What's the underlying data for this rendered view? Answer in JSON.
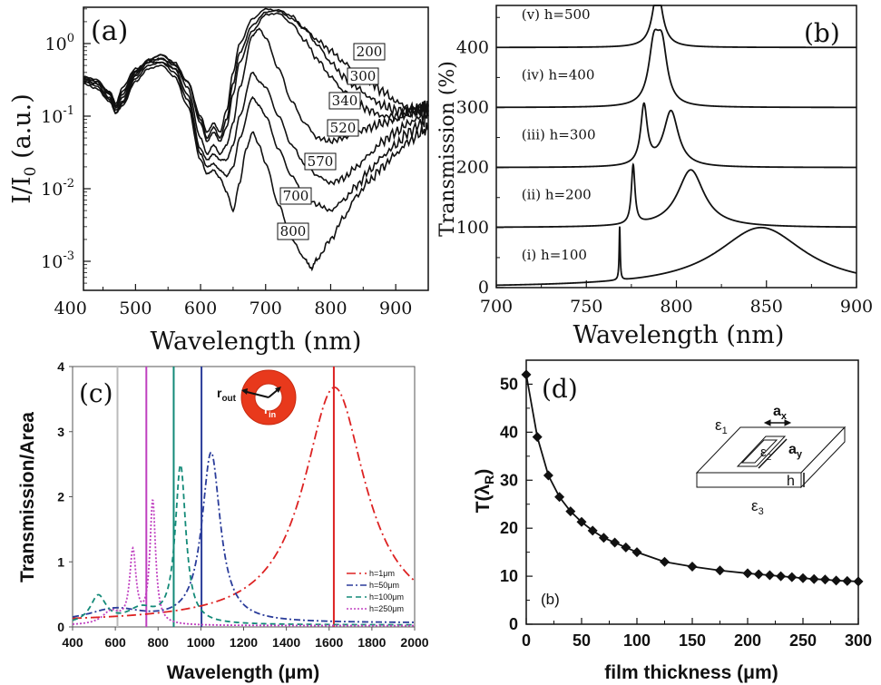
{
  "chart_data": [
    {
      "panel": "a",
      "type": "line",
      "panel_label": "(a)",
      "xlabel": "Wavelength  (nm)",
      "ylabel": "I/I",
      "ylabel_sub": "0",
      "ylabel_unit": " (a.u.)",
      "xlim": [
        420,
        950
      ],
      "ylim_log10": [
        -3.4,
        0.5
      ],
      "yscale": "log",
      "x_ticks": [
        400,
        500,
        600,
        700,
        800,
        900
      ],
      "y_ticks": [
        {
          "exp": 0,
          "base": "10",
          "sup": "0"
        },
        {
          "exp": -1,
          "base": "10",
          "sup": "-1"
        },
        {
          "exp": -2,
          "base": "10",
          "sup": "-2"
        },
        {
          "exp": -3,
          "base": "10",
          "sup": "-3"
        }
      ],
      "series": [
        {
          "name": "200",
          "label": "200",
          "x": [
            420,
            440,
            460,
            470,
            480,
            500,
            520,
            540,
            560,
            580,
            600,
            610,
            620,
            630,
            640,
            650,
            660,
            680,
            700,
            720,
            740,
            760,
            780,
            800,
            820,
            840,
            860,
            880,
            900,
            920,
            940,
            950
          ],
          "y": [
            0.3,
            0.28,
            0.22,
            0.15,
            0.25,
            0.45,
            0.55,
            0.55,
            0.45,
            0.3,
            0.1,
            0.06,
            0.08,
            0.06,
            0.12,
            0.4,
            1.0,
            2.2,
            3.0,
            2.8,
            2.2,
            1.6,
            1.1,
            0.8,
            0.55,
            0.4,
            0.3,
            0.22,
            0.16,
            0.13,
            0.12,
            0.12
          ]
        },
        {
          "name": "300",
          "label": "300",
          "x": [
            420,
            440,
            460,
            470,
            480,
            500,
            520,
            540,
            560,
            580,
            600,
            610,
            620,
            630,
            640,
            650,
            660,
            680,
            700,
            720,
            740,
            760,
            780,
            800,
            820,
            840,
            860,
            880,
            900,
            920,
            940,
            950
          ],
          "y": [
            0.33,
            0.3,
            0.2,
            0.14,
            0.22,
            0.42,
            0.58,
            0.62,
            0.5,
            0.3,
            0.09,
            0.05,
            0.07,
            0.05,
            0.09,
            0.28,
            0.75,
            1.8,
            2.7,
            2.9,
            2.4,
            1.6,
            0.95,
            0.55,
            0.35,
            0.25,
            0.18,
            0.14,
            0.12,
            0.12,
            0.13,
            0.14
          ]
        },
        {
          "name": "340",
          "label": "340",
          "x": [
            420,
            440,
            460,
            470,
            480,
            500,
            520,
            540,
            560,
            580,
            600,
            610,
            620,
            630,
            640,
            650,
            660,
            680,
            700,
            720,
            740,
            760,
            780,
            800,
            820,
            840,
            860,
            880,
            900,
            920,
            940,
            950
          ],
          "y": [
            0.35,
            0.32,
            0.21,
            0.14,
            0.2,
            0.4,
            0.6,
            0.7,
            0.55,
            0.3,
            0.08,
            0.045,
            0.06,
            0.045,
            0.07,
            0.2,
            0.55,
            1.5,
            2.5,
            2.6,
            1.9,
            1.1,
            0.6,
            0.35,
            0.22,
            0.15,
            0.12,
            0.1,
            0.1,
            0.11,
            0.13,
            0.14
          ]
        },
        {
          "name": "520",
          "label": "520",
          "x": [
            420,
            440,
            460,
            470,
            480,
            500,
            520,
            540,
            560,
            580,
            600,
            610,
            620,
            630,
            640,
            650,
            660,
            680,
            690,
            700,
            720,
            740,
            760,
            780,
            800,
            820,
            840,
            860,
            880,
            900,
            920,
            940,
            950
          ],
          "y": [
            0.35,
            0.3,
            0.2,
            0.13,
            0.18,
            0.38,
            0.6,
            0.7,
            0.52,
            0.25,
            0.05,
            0.03,
            0.04,
            0.03,
            0.04,
            0.08,
            0.25,
            1.3,
            1.6,
            1.2,
            0.45,
            0.16,
            0.08,
            0.05,
            0.045,
            0.05,
            0.06,
            0.07,
            0.08,
            0.09,
            0.11,
            0.13,
            0.14
          ]
        },
        {
          "name": "570",
          "label": "570",
          "x": [
            420,
            440,
            460,
            470,
            480,
            500,
            520,
            540,
            560,
            580,
            600,
            610,
            620,
            630,
            640,
            650,
            660,
            680,
            690,
            700,
            720,
            740,
            760,
            780,
            800,
            820,
            840,
            860,
            880,
            900,
            920,
            940,
            950
          ],
          "y": [
            0.32,
            0.28,
            0.18,
            0.12,
            0.16,
            0.36,
            0.55,
            0.62,
            0.45,
            0.2,
            0.035,
            0.025,
            0.03,
            0.025,
            0.025,
            0.04,
            0.1,
            0.4,
            0.3,
            0.25,
            0.1,
            0.04,
            0.022,
            0.015,
            0.012,
            0.014,
            0.02,
            0.03,
            0.045,
            0.06,
            0.08,
            0.1,
            0.12
          ]
        },
        {
          "name": "700",
          "label": "700",
          "x": [
            420,
            440,
            460,
            470,
            480,
            500,
            520,
            540,
            560,
            580,
            600,
            610,
            620,
            630,
            640,
            650,
            660,
            680,
            690,
            700,
            720,
            740,
            760,
            780,
            800,
            820,
            840,
            860,
            880,
            900,
            920,
            940,
            950
          ],
          "y": [
            0.3,
            0.26,
            0.17,
            0.11,
            0.15,
            0.33,
            0.5,
            0.55,
            0.4,
            0.17,
            0.03,
            0.02,
            0.022,
            0.018,
            0.015,
            0.02,
            0.05,
            0.18,
            0.14,
            0.1,
            0.035,
            0.015,
            0.008,
            0.006,
            0.005,
            0.007,
            0.011,
            0.018,
            0.028,
            0.04,
            0.06,
            0.08,
            0.1
          ]
        },
        {
          "name": "800",
          "label": "800",
          "x": [
            420,
            440,
            460,
            470,
            480,
            500,
            520,
            540,
            560,
            580,
            600,
            610,
            620,
            630,
            640,
            650,
            660,
            670,
            680,
            690,
            700,
            720,
            740,
            760,
            770,
            780,
            800,
            820,
            840,
            860,
            880,
            900,
            920,
            940,
            950
          ],
          "y": [
            0.28,
            0.24,
            0.16,
            0.11,
            0.14,
            0.3,
            0.45,
            0.5,
            0.35,
            0.14,
            0.025,
            0.016,
            0.018,
            0.014,
            0.009,
            0.005,
            0.012,
            0.035,
            0.06,
            0.04,
            0.022,
            0.006,
            0.002,
            0.0011,
            0.0008,
            0.0011,
            0.002,
            0.004,
            0.008,
            0.013,
            0.02,
            0.03,
            0.045,
            0.06,
            0.07
          ]
        }
      ]
    },
    {
      "panel": "b",
      "type": "line",
      "panel_label": "(b)",
      "xlabel": "Wavelength (nm)",
      "ylabel": "Transmission (%)",
      "xlim": [
        700,
        900
      ],
      "ylim": [
        0,
        470
      ],
      "x_ticks": [
        700,
        750,
        800,
        850,
        900
      ],
      "y_ticks": [
        0,
        100,
        200,
        300,
        400
      ],
      "series": [
        {
          "name": "(i) h=100",
          "label": "(i) h=100",
          "offset": 0,
          "peaks": [
            {
              "c": 768.5,
              "w": 0.35,
              "a": 90
            },
            {
              "c": 847,
              "w": 30,
              "a": 100
            }
          ]
        },
        {
          "name": "(ii) h=200",
          "label": "(ii) h=200",
          "offset": 100,
          "peaks": [
            {
              "c": 776,
              "w": 1.2,
              "a": 98
            },
            {
              "c": 808,
              "w": 9,
              "a": 96
            }
          ]
        },
        {
          "name": "(iii) h=300",
          "label": "(iii) h=300",
          "offset": 200,
          "peaks": [
            {
              "c": 782,
              "w": 2.2,
              "a": 98
            },
            {
              "c": 797,
              "w": 5,
              "a": 93
            }
          ]
        },
        {
          "name": "(iv) h=400",
          "label": "(iv) h=400",
          "offset": 300,
          "peaks": [
            {
              "c": 787.5,
              "w": 3.5,
              "a": 92
            },
            {
              "c": 792,
              "w": 3.5,
              "a": 90
            }
          ]
        },
        {
          "name": "(v) h=500",
          "label": "(v) h=500",
          "offset": 400,
          "peaks": [
            {
              "c": 789.5,
              "w": 3.3,
              "a": 98
            }
          ]
        }
      ]
    },
    {
      "panel": "c",
      "type": "line",
      "panel_label": "(c)",
      "xlabel": "Wavelength (μm)",
      "ylabel": "Transmission/Area",
      "xlim": [
        400,
        2000
      ],
      "ylim": [
        0,
        4
      ],
      "x_ticks": [
        400,
        600,
        800,
        1000,
        1200,
        1400,
        1600,
        1800,
        2000
      ],
      "y_ticks": [
        0,
        1,
        2,
        3,
        4
      ],
      "inset_labels": {
        "r_out": "r",
        "r_out_sub": "out",
        "r_in": "r",
        "r_in_sub": "in"
      },
      "vertical_lines": [
        {
          "x": 610,
          "color": "#bbbbbb"
        },
        {
          "x": 745,
          "color": "#c040c0"
        },
        {
          "x": 873,
          "color": "#138a78"
        },
        {
          "x": 1003,
          "color": "#2a3c9a"
        },
        {
          "x": 1622,
          "color": "#dd2222"
        }
      ],
      "series": [
        {
          "name": "h=1μm",
          "label": "h=1μm",
          "color": "#dd2222",
          "dash": "10,4,2,4",
          "base": 0.06,
          "peaks": [
            {
              "c": 1625,
              "w": 175,
              "a": 3.62
            }
          ]
        },
        {
          "name": "h=50μm",
          "label": "h=50μm",
          "color": "#2a3c9a",
          "dash": "7,3,2,3",
          "base": 0.06,
          "peaks": [
            {
              "c": 1048,
              "w": 52,
              "a": 2.6
            },
            {
              "c": 600,
              "w": 160,
              "a": 0.2
            }
          ]
        },
        {
          "name": "h=100μm",
          "label": "h=100μm",
          "color": "#138a78",
          "dash": "6,4",
          "base": 0.03,
          "peaks": [
            {
              "c": 905,
              "w": 30,
              "a": 2.42
            },
            {
              "c": 520,
              "w": 45,
              "a": 0.42
            },
            {
              "c": 720,
              "w": 80,
              "a": 0.22
            }
          ]
        },
        {
          "name": "h=250μm",
          "label": "h=250μm",
          "color": "#c040c0",
          "dash": "2,2",
          "base": 0.02,
          "peaks": [
            {
              "c": 775,
              "w": 16,
              "a": 1.88
            },
            {
              "c": 682,
              "w": 18,
              "a": 1.1
            },
            {
              "c": 580,
              "w": 50,
              "a": 0.2
            }
          ]
        }
      ]
    },
    {
      "panel": "d",
      "type": "line",
      "panel_label": "(d)",
      "sublabel": "(b)",
      "xlabel": "film thickness (μm)",
      "ylabel": "T(λ",
      "ylabel_sub": "R",
      "ylabel_end": ")",
      "xlim": [
        0,
        300
      ],
      "ylim": [
        0,
        55
      ],
      "x_ticks": [
        0,
        50,
        100,
        150,
        200,
        250,
        300
      ],
      "y_ticks": [
        0,
        10,
        20,
        30,
        40,
        50
      ],
      "inset_labels": {
        "eps1": "ε",
        "eps1_sub": "1",
        "eps2": "ε",
        "eps2_sub": "2",
        "eps3": "ε",
        "eps3_sub": "3",
        "ax": "a",
        "ax_sub": "x",
        "ay": "a",
        "ay_sub": "y",
        "h": "h"
      },
      "series": [
        {
          "name": "T",
          "x": [
            0,
            10,
            20,
            30,
            40,
            50,
            60,
            70,
            80,
            90,
            100,
            125,
            150,
            175,
            200,
            210,
            220,
            230,
            240,
            250,
            260,
            270,
            280,
            290,
            300
          ],
          "y": [
            52,
            39,
            31,
            26.5,
            23.5,
            21.3,
            19.5,
            18,
            17,
            16,
            15,
            13,
            12,
            11.2,
            10.6,
            10.4,
            10.2,
            10,
            9.8,
            9.6,
            9.4,
            9.3,
            9.1,
            9.0,
            8.9
          ]
        }
      ]
    }
  ]
}
